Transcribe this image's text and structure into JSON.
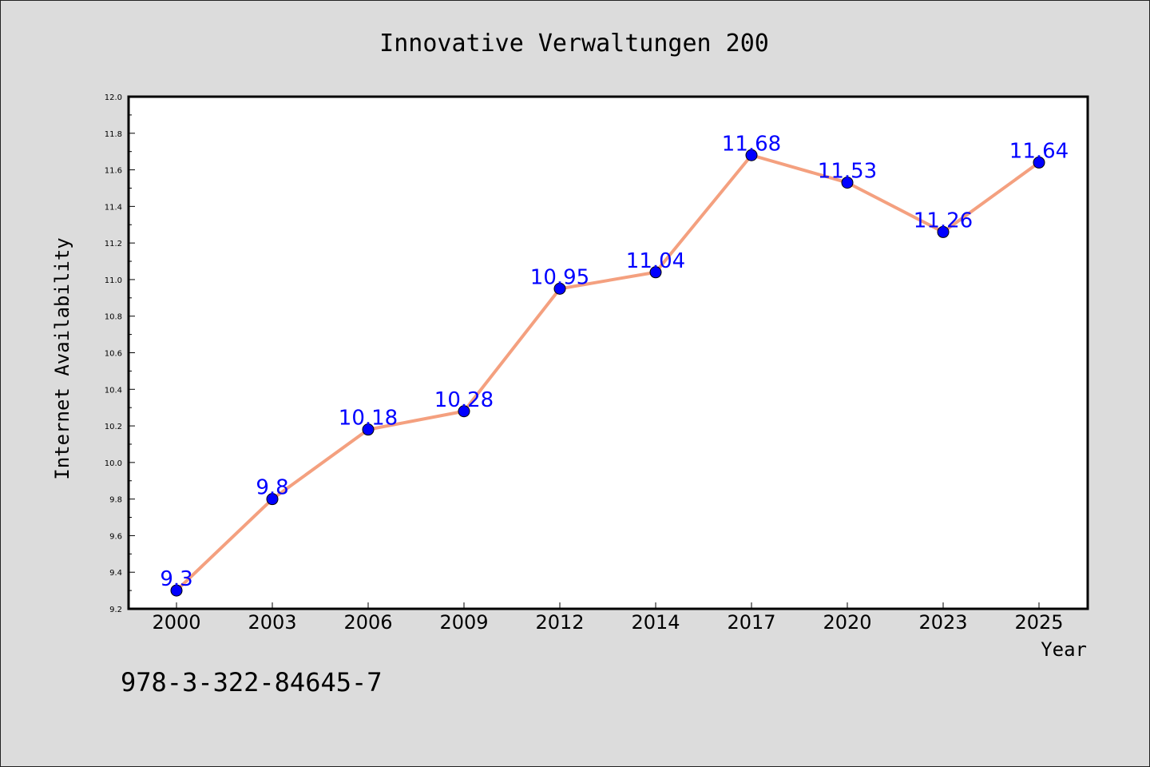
{
  "chart_data": {
    "type": "line",
    "title": "Innovative Verwaltungen 200",
    "xlabel": "Year",
    "ylabel": "Internet Availability",
    "categories": [
      "2000",
      "2003",
      "2006",
      "2009",
      "2012",
      "2014",
      "2017",
      "2020",
      "2023",
      "2025"
    ],
    "series": [
      {
        "values": [
          9.3,
          9.8,
          10.18,
          10.28,
          10.95,
          11.04,
          11.68,
          11.53,
          11.26,
          11.64
        ],
        "labels": [
          "9.3",
          "9.8",
          "10.18",
          "10.28",
          "10.95",
          "11.04",
          "11.68",
          "11.53",
          "11.26",
          "11.64"
        ],
        "line_color": "#f4a07f",
        "marker_color": "#0000ff",
        "label_color": "#0000ff"
      }
    ],
    "ylim": [
      9.2,
      12.0
    ],
    "yticks": [
      "9.2",
      "9.4",
      "9.6",
      "9.8",
      "10.0",
      "10.2",
      "10.4",
      "10.6",
      "10.8",
      "11.0",
      "11.2",
      "11.4",
      "11.6",
      "11.8",
      "12.0"
    ],
    "grid": false,
    "legend": "none",
    "background_color": "#dcdcdc",
    "plot_background_color": "#ffffff"
  },
  "footer": {
    "code": "978-3-322-84645-7"
  }
}
